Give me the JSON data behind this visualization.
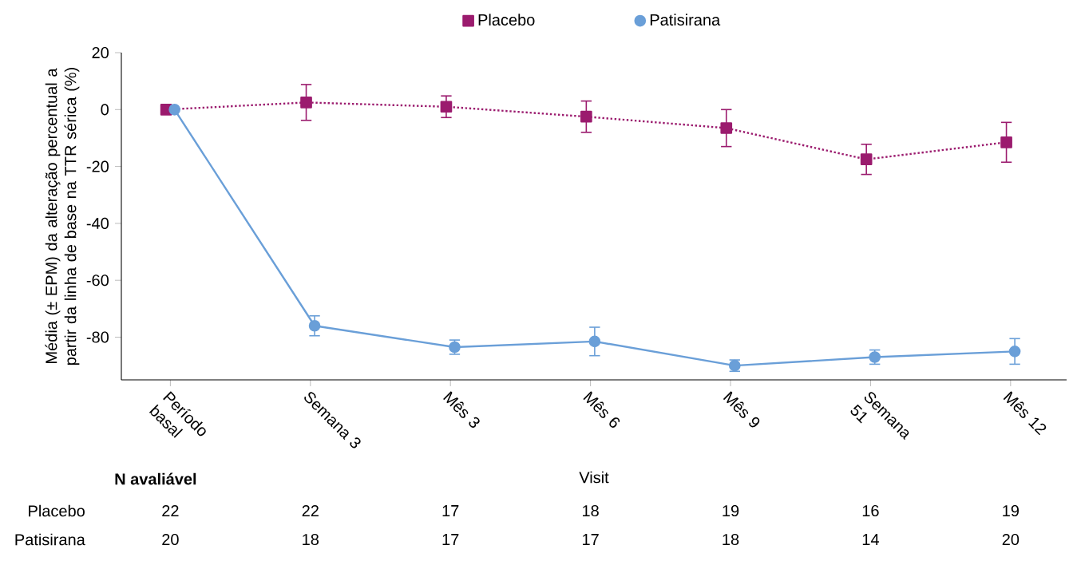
{
  "chart_data": {
    "type": "line",
    "xlabel": "Visit",
    "ylabel": "Média (± EPM) da alteração percentual a partir da linha de base na TTR sérica (%)",
    "categories": [
      "Período basal",
      "Semana 3",
      "Mês 3",
      "Mês 6",
      "Mês 9",
      "Semana 51",
      "Mês 12"
    ],
    "ylim": [
      -95,
      20
    ],
    "yticks": [
      -80,
      -60,
      -40,
      -20,
      0,
      20
    ],
    "legend": "top",
    "series": [
      {
        "name": "Placebo",
        "color": "#9b1b6e",
        "marker": "square",
        "line_style": "dotted",
        "values": [
          0,
          2.5,
          1,
          -2.5,
          -6.5,
          -17.5,
          -11.5
        ],
        "errors": [
          null,
          6.3,
          3.8,
          5.5,
          6.5,
          5.3,
          7
        ]
      },
      {
        "name": "Patisirana",
        "color": "#6a9fd8",
        "marker": "circle",
        "line_style": "solid",
        "values": [
          0,
          -76,
          -83.5,
          -81.5,
          -90,
          -87,
          -85
        ],
        "errors": [
          null,
          3.5,
          2.5,
          5,
          2,
          2.5,
          4.5
        ]
      }
    ],
    "annotations": [
      "N avaliável",
      "22",
      "22",
      "17",
      "18",
      "19",
      "16",
      "19",
      "20",
      "18",
      "17",
      "17",
      "18",
      "14",
      "20"
    ]
  }
}
